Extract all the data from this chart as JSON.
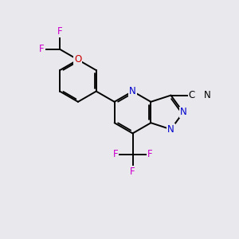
{
  "bg_color": "#e8e8ed",
  "bond_lw": 1.4,
  "N_color": "#0000cc",
  "O_color": "#cc0000",
  "F_color": "#cc00cc",
  "label_fs": 8.5,
  "figsize": [
    3.0,
    3.0
  ],
  "dpi": 100,
  "xlim": [
    0,
    10
  ],
  "ylim": [
    0,
    10
  ]
}
